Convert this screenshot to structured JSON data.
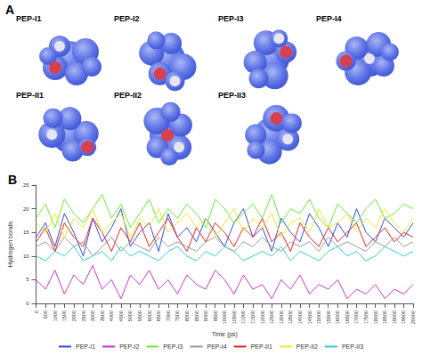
{
  "panel_a": {
    "label": "A",
    "structures": [
      "PEP-I1",
      "PEP-I2",
      "PEP-I3",
      "PEP-I4",
      "PEP-II1",
      "PEP-II2",
      "PEP-II3"
    ]
  },
  "chart_data": {
    "type": "line",
    "title": "B",
    "x_label": "Time (ps)",
    "y_label": "Hydrogen bonds",
    "x": [
      0,
      500,
      1000,
      1500,
      2000,
      2500,
      3000,
      3500,
      4000,
      4500,
      5000,
      5500,
      6000,
      6500,
      7000,
      7500,
      8000,
      8500,
      9000,
      9500,
      10000,
      10500,
      11000,
      11500,
      12000,
      12500,
      13000,
      13500,
      14000,
      14500,
      15000,
      15500,
      16000,
      16500,
      17000,
      17500,
      18000,
      18500,
      19000,
      19500,
      20000
    ],
    "xlim": [
      0,
      20000
    ],
    "xticks": [
      0,
      500,
      1000,
      1500,
      2000,
      2500,
      3000,
      3500,
      4000,
      4500,
      5000,
      5500,
      6000,
      6500,
      7000,
      7500,
      8000,
      8500,
      9000,
      9500,
      10000,
      10500,
      11000,
      11500,
      12000,
      12500,
      13000,
      13500,
      14000,
      14500,
      15000,
      15500,
      16000,
      16500,
      17000,
      17500,
      18000,
      18500,
      19000,
      19500,
      20000
    ],
    "ylim": [
      0,
      25
    ],
    "yticks": [
      0,
      5,
      10,
      15,
      20,
      25
    ],
    "grid": false,
    "legend": "bottom",
    "series": [
      {
        "name": "PEP-I1",
        "color": "#2e4fd8",
        "values": [
          14,
          17,
          12,
          19,
          15,
          10,
          18,
          13,
          16,
          20,
          12,
          15,
          17,
          11,
          19,
          14,
          16,
          13,
          18,
          15,
          12,
          17,
          20,
          14,
          16,
          11,
          18,
          15,
          13,
          19,
          16,
          12,
          17,
          14,
          20,
          15,
          13,
          18,
          16,
          14,
          17
        ]
      },
      {
        "name": "PEP-I2",
        "color": "#cc33cc",
        "values": [
          5,
          3,
          7,
          2,
          6,
          4,
          8,
          3,
          5,
          1,
          6,
          4,
          7,
          3,
          5,
          2,
          6,
          4,
          3,
          7,
          5,
          2,
          6,
          3,
          4,
          1,
          5,
          3,
          6,
          2,
          4,
          3,
          5,
          1,
          3,
          2,
          4,
          1,
          3,
          2,
          4
        ]
      },
      {
        "name": "PEP-I3",
        "color": "#66ee33",
        "values": [
          18,
          21,
          16,
          22,
          19,
          17,
          20,
          23,
          18,
          21,
          16,
          19,
          22,
          17,
          20,
          18,
          21,
          19,
          16,
          22,
          20,
          17,
          19,
          21,
          18,
          23,
          17,
          20,
          19,
          22,
          18,
          16,
          21,
          19,
          17,
          20,
          22,
          18,
          19,
          21,
          20
        ]
      },
      {
        "name": "PEP-I4",
        "color": "#999999",
        "values": [
          12,
          13,
          11,
          14,
          12,
          13,
          10,
          12,
          14,
          11,
          13,
          12,
          11,
          14,
          12,
          13,
          12,
          11,
          13,
          14,
          12,
          11,
          13,
          12,
          14,
          12,
          11,
          13,
          12,
          13,
          11,
          14,
          12,
          13,
          12,
          11,
          13,
          12,
          14,
          12,
          13
        ]
      },
      {
        "name": "PEP-II1",
        "color": "#ee2222",
        "values": [
          13,
          16,
          11,
          17,
          14,
          12,
          18,
          15,
          11,
          16,
          13,
          17,
          12,
          15,
          18,
          14,
          11,
          16,
          13,
          17,
          15,
          12,
          16,
          14,
          18,
          13,
          15,
          11,
          17,
          14,
          12,
          16,
          13,
          15,
          17,
          12,
          14,
          16,
          13,
          15,
          14
        ]
      },
      {
        "name": "PEP-II2",
        "color": "#f5e62a",
        "values": [
          17,
          15,
          19,
          14,
          18,
          16,
          20,
          15,
          17,
          19,
          14,
          18,
          16,
          20,
          15,
          17,
          19,
          16,
          18,
          14,
          17,
          20,
          15,
          18,
          16,
          19,
          14,
          17,
          18,
          15,
          20,
          16,
          17,
          19,
          15,
          18,
          16,
          20,
          17,
          15,
          18
        ]
      },
      {
        "name": "PEP-II3",
        "color": "#33cccc",
        "values": [
          10,
          9,
          11,
          10,
          12,
          9,
          10,
          11,
          9,
          12,
          10,
          11,
          10,
          9,
          11,
          12,
          10,
          9,
          11,
          10,
          12,
          11,
          9,
          10,
          11,
          10,
          12,
          9,
          11,
          10,
          9,
          11,
          12,
          10,
          11,
          9,
          10,
          12,
          11,
          10,
          11
        ]
      }
    ]
  }
}
